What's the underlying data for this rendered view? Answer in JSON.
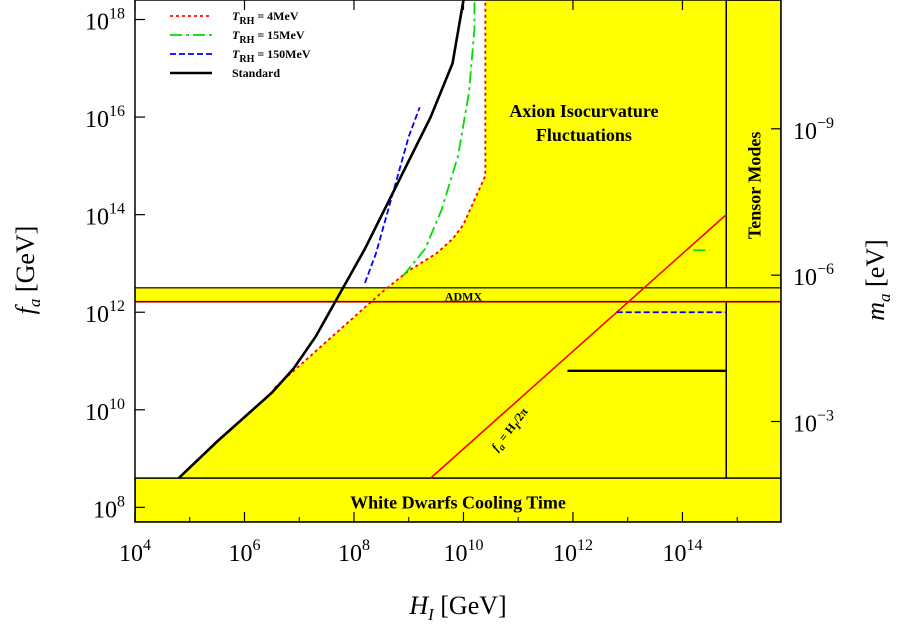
{
  "chart_data": {
    "type": "line",
    "xlabel": "H_I [GeV]",
    "xlabel_main": "H",
    "xlabel_sub": "I",
    "xlabel_unit": " [GeV]",
    "ylabel_main": "f",
    "ylabel_sub": "a",
    "ylabel_unit": " [GeV]",
    "y2label_main": "m",
    "y2label_sub": "a",
    "y2label_unit": " [eV]",
    "x_scale": "log",
    "y_scale": "log",
    "xlim_log10": [
      4,
      15.8
    ],
    "ylim_log10": [
      7.7,
      18.4
    ],
    "x_ticks": [
      {
        "base": "10",
        "exp": "4",
        "log10": 4
      },
      {
        "base": "10",
        "exp": "6",
        "log10": 6
      },
      {
        "base": "10",
        "exp": "8",
        "log10": 8
      },
      {
        "base": "10",
        "exp": "10",
        "log10": 10
      },
      {
        "base": "10",
        "exp": "12",
        "log10": 12
      },
      {
        "base": "10",
        "exp": "14",
        "log10": 14
      }
    ],
    "y_ticks": [
      {
        "base": "10",
        "exp": "8",
        "log10": 8
      },
      {
        "base": "10",
        "exp": "10",
        "log10": 10
      },
      {
        "base": "10",
        "exp": "12",
        "log10": 12
      },
      {
        "base": "10",
        "exp": "14",
        "log10": 14
      },
      {
        "base": "10",
        "exp": "16",
        "log10": 16
      },
      {
        "base": "10",
        "exp": "18",
        "log10": 18
      }
    ],
    "y2_ticks": [
      {
        "base": "10",
        "exp": "−9",
        "fa_log10": 15.76
      },
      {
        "base": "10",
        "exp": "−6",
        "fa_log10": 12.76
      },
      {
        "base": "10",
        "exp": "−3",
        "fa_log10": 9.76
      }
    ],
    "regions": [
      {
        "name": "Axion Isocurvature Fluctuations",
        "line1": "Axion Isocurvature",
        "line2": "Fluctuations",
        "color": "#ffff00"
      },
      {
        "name": "White Dwarfs Cooling Time",
        "label": "White Dwarfs Cooling Time",
        "fa_max_log10": 8.6,
        "color": "#ffff00"
      },
      {
        "name": "Tensor Modes",
        "label": "Tensor Modes",
        "HI_min_log10": 14.8,
        "color": "#ffff00"
      },
      {
        "name": "ADMX",
        "label": "ADMX",
        "fa_range_log10": [
          12.22,
          12.5
        ],
        "color": "#ffff00"
      }
    ],
    "diagonal_label": {
      "main": "f",
      "sub": "a",
      "rest": " = H",
      "sub2": "I",
      "tail": "/2π"
    },
    "diagonal_line": {
      "name": "f_a = H_I/2π",
      "color": "#ff0000",
      "offset_log10": -0.8
    },
    "series": [
      {
        "name": "T_RH = 4MeV",
        "label_main": "T",
        "label_sub": "RH",
        "label_value": " = 4MeV",
        "color": "#ff0000",
        "dash": "3,3",
        "x_log10": [
          6.55,
          7.0,
          7.5,
          8.0,
          8.5,
          9.0,
          9.5,
          9.8,
          10.0,
          10.2,
          10.4,
          10.4,
          10.4
        ],
        "y_log10": [
          10.45,
          10.9,
          11.4,
          11.9,
          12.4,
          12.85,
          13.2,
          13.5,
          13.8,
          14.3,
          14.8,
          16.5,
          18.4
        ],
        "tail_x_log10": [],
        "tail_y_log10": []
      },
      {
        "name": "T_RH = 15MeV",
        "label_main": "T",
        "label_sub": "RH",
        "label_value": " = 15MeV",
        "color": "#00dd00",
        "dash": "12,4,3,4",
        "x_log10": [
          8.9,
          9.3,
          9.6,
          9.9,
          10.1,
          10.2,
          10.2
        ],
        "y_log10": [
          12.75,
          13.3,
          14.1,
          15.2,
          16.5,
          17.8,
          18.4
        ],
        "tail_x_log10": [
          14.2,
          14.5
        ],
        "tail_y_log10": [
          13.27,
          13.27
        ]
      },
      {
        "name": "T_RH = 150MeV",
        "label_main": "T",
        "label_sub": "RH",
        "label_value": " = 150MeV",
        "color": "#0000ff",
        "dash": "6,3",
        "x_log10": [
          8.2,
          8.4,
          8.6,
          8.8,
          9.0,
          9.2
        ],
        "y_log10": [
          12.6,
          13.2,
          14.0,
          14.8,
          15.6,
          16.2
        ],
        "tail_x_log10": [
          12.8,
          14.8
        ],
        "tail_y_log10": [
          12.0,
          12.0
        ]
      },
      {
        "name": "Standard",
        "label_main": "Standard",
        "label_sub": "",
        "label_value": "",
        "color": "#000000",
        "dash": "",
        "x_log10": [
          4.8,
          5.5,
          6.0,
          6.5,
          6.9,
          7.3,
          7.6,
          7.9,
          8.2,
          8.6,
          9.0,
          9.4,
          9.8,
          10.0
        ],
        "y_log10": [
          8.6,
          9.35,
          9.85,
          10.35,
          10.85,
          11.5,
          12.1,
          12.7,
          13.3,
          14.2,
          15.1,
          16.0,
          17.1,
          18.4
        ],
        "tail_x_log10": [
          11.9,
          14.8
        ],
        "tail_y_log10": [
          10.8,
          10.8
        ]
      }
    ]
  }
}
